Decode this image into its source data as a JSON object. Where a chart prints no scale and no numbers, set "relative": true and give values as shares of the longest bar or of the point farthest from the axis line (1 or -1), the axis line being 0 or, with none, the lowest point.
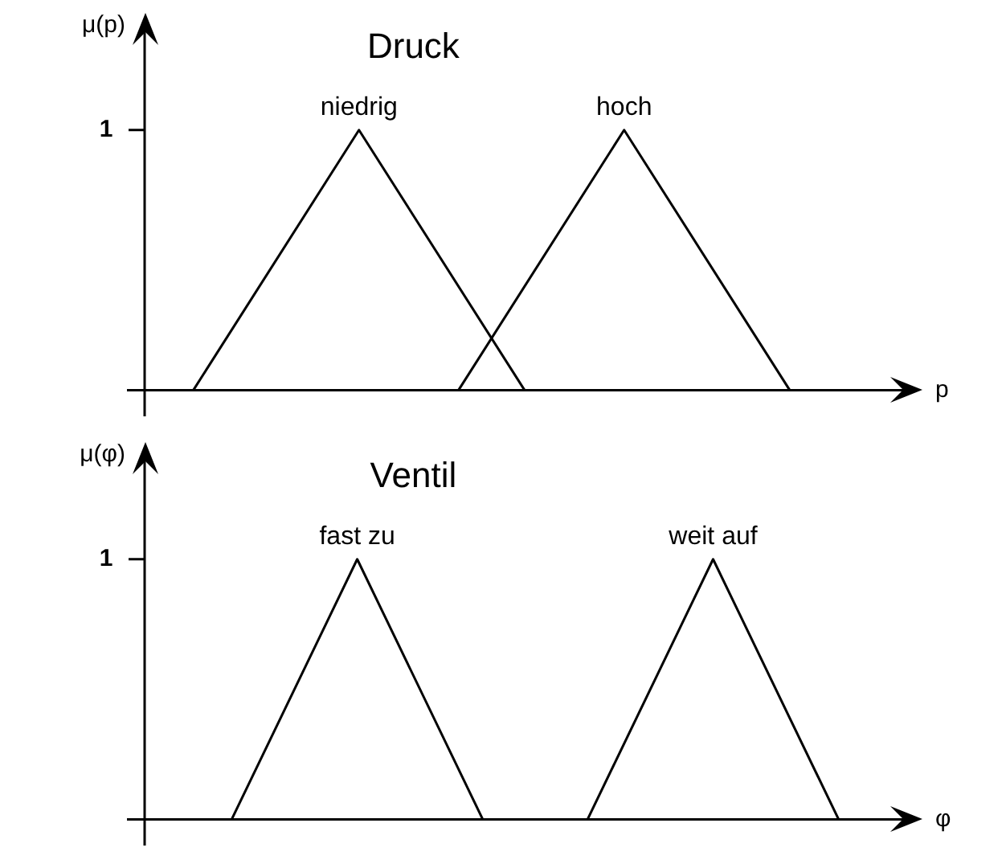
{
  "chart_data": [
    {
      "type": "line",
      "title": "Druck",
      "xlabel": "p",
      "ylabel": "μ(p)",
      "relative": true,
      "annotations": [
        "1"
      ],
      "legend": false,
      "marker": "none",
      "line_style": "solid",
      "categories": [
        null,
        null,
        null,
        null,
        null,
        null,
        null,
        null,
        null,
        null,
        null,
        null,
        null,
        null,
        null,
        null,
        null,
        null,
        null,
        null,
        null,
        null,
        null,
        null,
        null
      ],
      "series": [
        {
          "name": "niedrig",
          "color": "#000000",
          "values": [
            null,
            null,
            0,
            null,
            null,
            null,
            null,
            1,
            null,
            null,
            null,
            null,
            0,
            null,
            null,
            null,
            null,
            null,
            null,
            null,
            null,
            null,
            null,
            null,
            null
          ]
        },
        {
          "name": "hoch",
          "color": "#000000",
          "values": [
            null,
            null,
            null,
            null,
            null,
            null,
            null,
            null,
            null,
            null,
            0,
            null,
            null,
            null,
            null,
            1,
            null,
            null,
            null,
            null,
            0,
            null,
            null,
            null,
            null
          ]
        }
      ]
    },
    {
      "type": "line",
      "title": "Ventil",
      "xlabel": "φ",
      "ylabel": "μ(φ)",
      "relative": true,
      "annotations": [
        "1"
      ],
      "legend": false,
      "marker": "none",
      "line_style": "solid",
      "categories": [
        null,
        null,
        null,
        null,
        null,
        null,
        null,
        null,
        null,
        null,
        null,
        null,
        null,
        null,
        null,
        null,
        null,
        null,
        null,
        null,
        null,
        null,
        null,
        null,
        null,
        null,
        null,
        null,
        null,
        null,
        null,
        null,
        null,
        null,
        null,
        null,
        null,
        null,
        null
      ],
      "series": [
        {
          "name": "fast zu",
          "color": "#000000",
          "values": [
            null,
            null,
            null,
            null,
            null,
            0,
            null,
            null,
            null,
            null,
            null,
            1,
            null,
            null,
            null,
            null,
            null,
            0,
            null,
            null,
            null,
            null,
            null,
            null,
            null,
            null,
            null,
            null,
            null,
            null,
            null,
            null,
            null,
            null,
            null,
            null,
            null,
            null,
            null
          ]
        },
        {
          "name": "weit auf",
          "color": "#000000",
          "values": [
            null,
            null,
            null,
            null,
            null,
            null,
            null,
            null,
            null,
            null,
            null,
            null,
            null,
            null,
            null,
            null,
            null,
            null,
            null,
            null,
            null,
            null,
            0,
            null,
            null,
            null,
            null,
            null,
            1,
            null,
            null,
            null,
            null,
            null,
            0,
            null,
            null,
            null,
            null
          ]
        }
      ]
    }
  ]
}
